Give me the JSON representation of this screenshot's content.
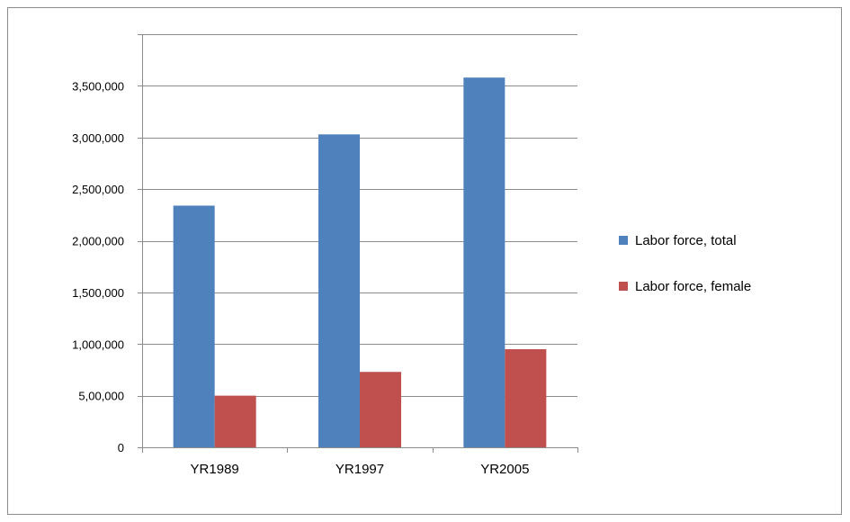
{
  "chart_data": {
    "type": "bar",
    "categories": [
      "YR1989",
      "YR1997",
      "YR2005"
    ],
    "series": [
      {
        "name": "Labor force, total",
        "values": [
          2340000,
          3030000,
          3580000
        ],
        "color": "#4f81bd"
      },
      {
        "name": "Labor force, female",
        "values": [
          500000,
          730000,
          950000
        ],
        "color": "#c0504d"
      }
    ],
    "yticks": [
      0,
      500000,
      1000000,
      1500000,
      2000000,
      2500000,
      3000000,
      3500000
    ],
    "ytick_labels": [
      "0",
      "5,00,000",
      "1,000,000",
      "1,500,000",
      "2,000,000",
      "2,500,000",
      "3,000,000",
      "3,500,000"
    ],
    "ylim": [
      0,
      4000000
    ],
    "grid": true,
    "legend_position": "right",
    "title": "",
    "xlabel": "",
    "ylabel": ""
  }
}
